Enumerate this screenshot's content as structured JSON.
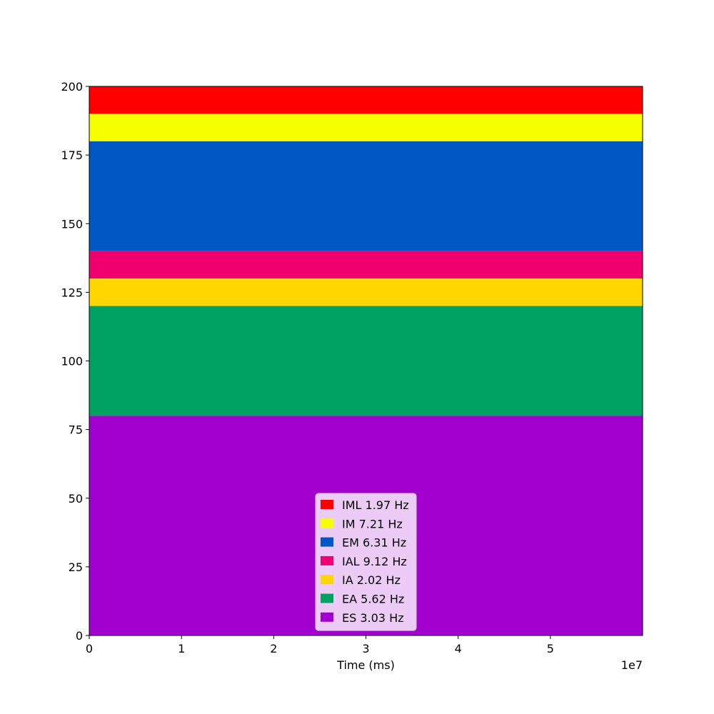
{
  "chart_data": {
    "type": "area",
    "xlabel": "Time (ms)",
    "ylabel": "",
    "x_offset_label": "1e7",
    "xlim": [
      0,
      6.0
    ],
    "ylim": [
      0,
      200
    ],
    "x_ticks": [
      0,
      1,
      2,
      3,
      4,
      5
    ],
    "y_ticks": [
      0,
      25,
      50,
      75,
      100,
      125,
      150,
      175,
      200
    ],
    "legend_position": "lower center",
    "bands": [
      {
        "label": "IML 1.97 Hz",
        "y_start": 190,
        "y_end": 200,
        "color": "#ff0000"
      },
      {
        "label": "IM 7.21 Hz",
        "y_start": 180,
        "y_end": 190,
        "color": "#f5ff00"
      },
      {
        "label": "EM 6.31 Hz",
        "y_start": 140,
        "y_end": 180,
        "color": "#0058c4"
      },
      {
        "label": "IAL 9.12 Hz",
        "y_start": 130,
        "y_end": 140,
        "color": "#f0006e"
      },
      {
        "label": "IA 2.02 Hz",
        "y_start": 120,
        "y_end": 130,
        "color": "#ffd600"
      },
      {
        "label": "EA 5.62 Hz",
        "y_start": 80,
        "y_end": 120,
        "color": "#00a263"
      },
      {
        "label": "ES 3.03 Hz",
        "y_start": 0,
        "y_end": 80,
        "color": "#a200cf"
      }
    ]
  }
}
